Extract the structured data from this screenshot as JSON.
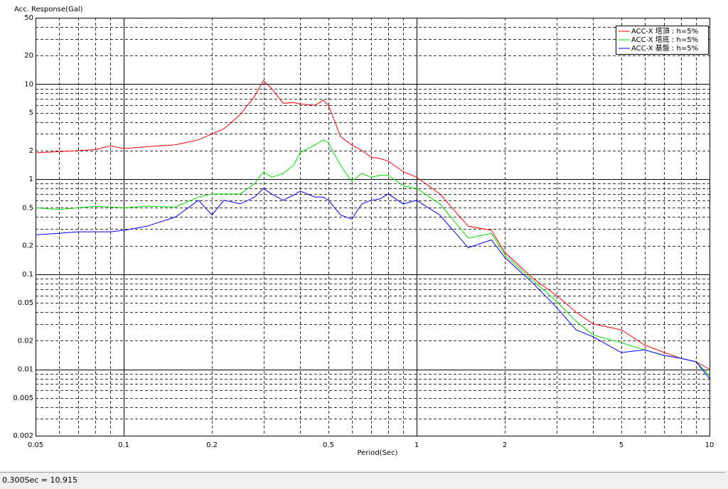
{
  "chart_data": {
    "type": "line",
    "y_label": "Acc. Response(Gal)",
    "x_label": "Period(Sec)",
    "xscale": "log",
    "yscale": "log",
    "xlim": [
      0.05,
      10
    ],
    "ylim": [
      0.002,
      50
    ],
    "xticks": [
      0.05,
      0.1,
      0.2,
      0.5,
      1,
      2,
      5,
      10
    ],
    "yticks": [
      0.002,
      0.005,
      0.01,
      0.02,
      0.05,
      0.1,
      0.2,
      0.5,
      1,
      2,
      5,
      10,
      20,
      50
    ],
    "xgrid_minor": [
      0.06,
      0.07,
      0.08,
      0.09,
      0.3,
      0.4,
      0.6,
      0.7,
      0.8,
      0.9,
      3,
      4,
      6,
      7,
      8,
      9
    ],
    "ygrid_minor": [
      0.003,
      0.004,
      0.006,
      0.007,
      0.008,
      0.009,
      0.03,
      0.04,
      0.06,
      0.07,
      0.08,
      0.09,
      0.3,
      0.4,
      0.6,
      0.7,
      0.8,
      0.9,
      3,
      4,
      6,
      7,
      8,
      9,
      30,
      40
    ],
    "grid": true,
    "legend": "upper right",
    "x": [
      0.05,
      0.06,
      0.07,
      0.08,
      0.09,
      0.1,
      0.12,
      0.15,
      0.18,
      0.2,
      0.22,
      0.25,
      0.28,
      0.3,
      0.32,
      0.35,
      0.38,
      0.4,
      0.45,
      0.48,
      0.5,
      0.55,
      0.6,
      0.65,
      0.7,
      0.75,
      0.8,
      0.9,
      1,
      1.2,
      1.5,
      1.8,
      2,
      2.5,
      3,
      3.5,
      4,
      5,
      6,
      7,
      8,
      9,
      10
    ],
    "series": [
      {
        "name": "ACC-X 塔頂 : h=5%",
        "color": "#ff0000",
        "values": [
          1.9,
          1.95,
          2.0,
          2.05,
          2.25,
          2.1,
          2.2,
          2.3,
          2.6,
          3.0,
          3.4,
          4.8,
          7.5,
          10.9,
          9.0,
          6.3,
          6.4,
          6.2,
          6.0,
          6.8,
          6.0,
          2.8,
          2.3,
          2.0,
          1.7,
          1.65,
          1.55,
          1.2,
          1.05,
          0.7,
          0.32,
          0.29,
          0.17,
          0.09,
          0.06,
          0.04,
          0.03,
          0.026,
          0.018,
          0.015,
          0.013,
          0.012,
          0.01
        ]
      },
      {
        "name": "ACC-X 塔底 : h=5%",
        "color": "#00e000",
        "values": [
          0.5,
          0.48,
          0.5,
          0.52,
          0.51,
          0.5,
          0.52,
          0.51,
          0.65,
          0.7,
          0.7,
          0.7,
          0.9,
          1.2,
          1.05,
          1.15,
          1.4,
          1.9,
          2.3,
          2.6,
          2.4,
          1.4,
          0.95,
          1.15,
          1.05,
          1.1,
          1.1,
          0.85,
          0.8,
          0.55,
          0.24,
          0.27,
          0.16,
          0.085,
          0.052,
          0.032,
          0.023,
          0.019,
          0.016,
          0.014,
          0.013,
          0.012,
          0.0085
        ]
      },
      {
        "name": "ACC-X 基盤 : h=5%",
        "color": "#0000ff",
        "values": [
          0.26,
          0.27,
          0.28,
          0.28,
          0.28,
          0.29,
          0.32,
          0.4,
          0.6,
          0.42,
          0.6,
          0.55,
          0.65,
          0.8,
          0.7,
          0.6,
          0.68,
          0.75,
          0.65,
          0.65,
          0.6,
          0.42,
          0.38,
          0.55,
          0.6,
          0.62,
          0.7,
          0.55,
          0.6,
          0.42,
          0.19,
          0.23,
          0.15,
          0.08,
          0.045,
          0.026,
          0.022,
          0.015,
          0.016,
          0.014,
          0.013,
          0.012,
          0.008
        ]
      }
    ]
  },
  "status_bar": {
    "text": "0.300Sec = 10.915"
  }
}
